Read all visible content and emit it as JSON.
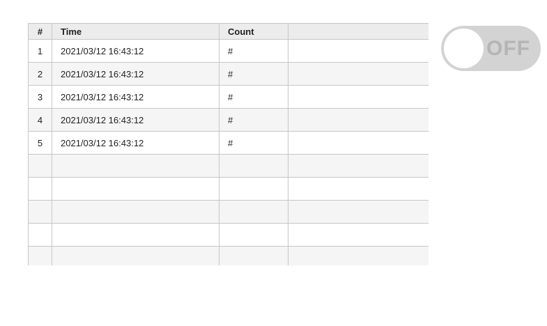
{
  "table": {
    "columns": [
      "#",
      "Time",
      "Count",
      ""
    ],
    "rows": [
      {
        "num": "1",
        "time": "2021/03/12 16:43:12",
        "count": "#"
      },
      {
        "num": "2",
        "time": "2021/03/12 16:43:12",
        "count": "#"
      },
      {
        "num": "3",
        "time": "2021/03/12 16:43:12",
        "count": "#"
      },
      {
        "num": "4",
        "time": "2021/03/12 16:43:12",
        "count": "#"
      },
      {
        "num": "5",
        "time": "2021/03/12 16:43:12",
        "count": "#"
      }
    ],
    "empty_rows": 5,
    "colors": {
      "header_bg": "#ececec",
      "stripe_bg": "#f5f5f5",
      "row_bg": "#ffffff",
      "border": "#c6c6c6",
      "text": "#1f1f1f"
    }
  },
  "toggle": {
    "state": "off",
    "label": "OFF",
    "colors": {
      "track": "#d3d3d3",
      "knob": "#ffffff",
      "label": "#b5b5b5"
    }
  }
}
